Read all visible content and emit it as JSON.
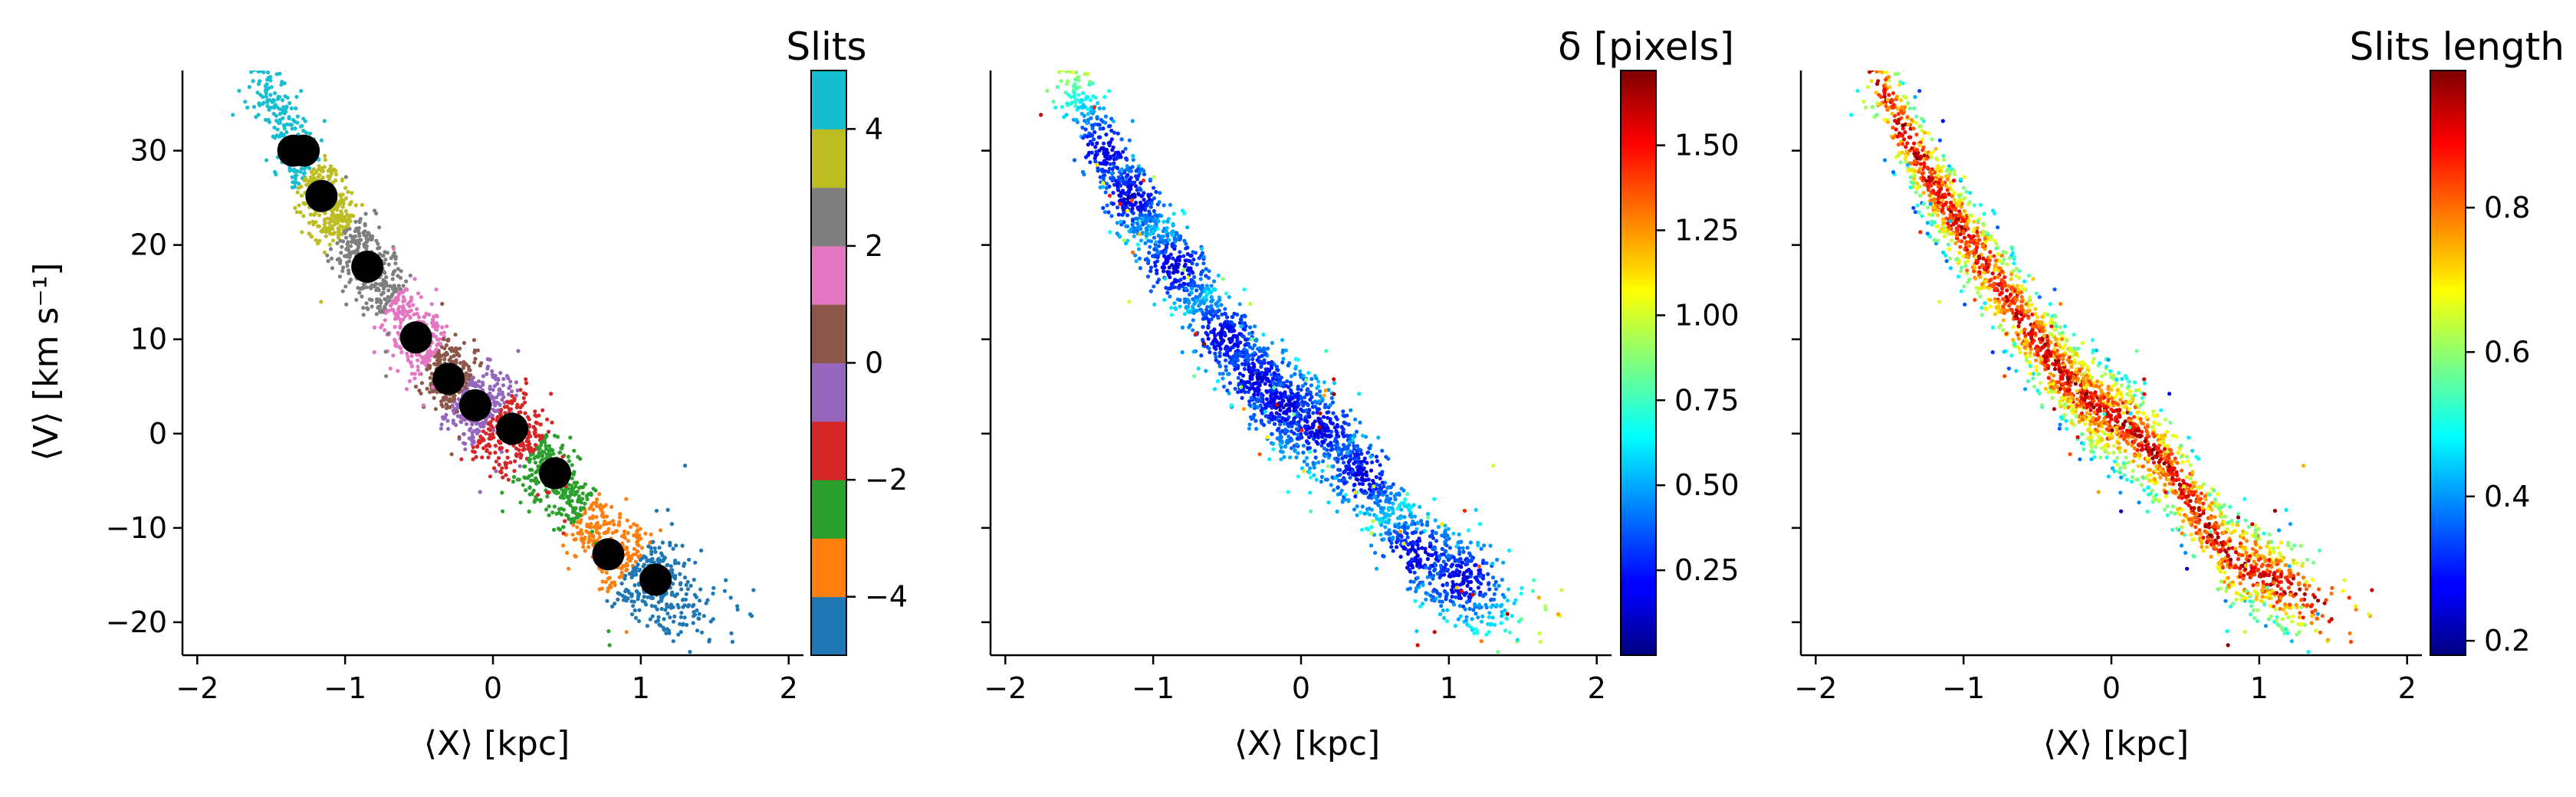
{
  "chart_data": [
    {
      "type": "scatter",
      "xlabel": "⟨X⟩ [kpc]",
      "ylabel": "⟨V⟩ [km s⁻¹]",
      "xlim": [
        -2.1,
        2.1
      ],
      "ylim": [
        -23.5,
        38.5
      ],
      "xticks": [
        -2,
        -1,
        0,
        1,
        2
      ],
      "yticks": [
        -20,
        -10,
        0,
        10,
        20,
        30
      ],
      "xtick_labels": [
        "−2",
        "−1",
        "0",
        "1",
        "2"
      ],
      "ytick_labels": [
        "−20",
        "−10",
        "0",
        "10",
        "20",
        "30"
      ],
      "color_by": "slit",
      "colorbar": {
        "title": "Slits",
        "type": "discrete",
        "range": [
          -5,
          5
        ],
        "ticks": [
          -4,
          -2,
          0,
          2,
          4
        ],
        "tick_labels": [
          "−4",
          "−2",
          "0",
          "2",
          "4"
        ],
        "colors": [
          "#1f77b4",
          "#ff7f0e",
          "#2ca02c",
          "#d62728",
          "#9467bd",
          "#8c564b",
          "#e377c2",
          "#7f7f7f",
          "#bcbd22",
          "#17becf"
        ]
      },
      "slit_centers": [
        {
          "slit": -5,
          "x": 1.1,
          "y": -15.5
        },
        {
          "slit": -4,
          "x": 0.78,
          "y": -12.8
        },
        {
          "slit": -3,
          "x": 0.42,
          "y": -4.2
        },
        {
          "slit": -2,
          "x": 0.13,
          "y": 0.5
        },
        {
          "slit": -1,
          "x": -0.12,
          "y": 3.0
        },
        {
          "slit": 0,
          "x": -0.3,
          "y": 5.8
        },
        {
          "slit": 1,
          "x": -0.52,
          "y": 10.2
        },
        {
          "slit": 2,
          "x": -0.85,
          "y": 17.7
        },
        {
          "slit": 3,
          "x": -1.16,
          "y": 25.2
        },
        {
          "slit": 4,
          "x": -1.33,
          "y": 30.0
        }
      ],
      "markers": [
        {
          "x": -1.35,
          "y": 30.0
        },
        {
          "x": -1.28,
          "y": 30.0
        },
        {
          "x": -1.16,
          "y": 25.2
        },
        {
          "x": -0.85,
          "y": 17.7
        },
        {
          "x": -0.52,
          "y": 10.2
        },
        {
          "x": -0.3,
          "y": 5.8
        },
        {
          "x": -0.12,
          "y": 3.0
        },
        {
          "x": 0.13,
          "y": 0.5
        },
        {
          "x": 0.42,
          "y": -4.2
        },
        {
          "x": 0.78,
          "y": -12.8
        },
        {
          "x": 1.1,
          "y": -15.5
        }
      ]
    },
    {
      "type": "scatter",
      "xlabel": "⟨X⟩ [kpc]",
      "ylabel": "",
      "xlim": [
        -2.1,
        2.1
      ],
      "ylim": [
        -23.5,
        38.5
      ],
      "xticks": [
        -2,
        -1,
        0,
        1,
        2
      ],
      "yticks": [
        -20,
        -10,
        0,
        10,
        20,
        30
      ],
      "xtick_labels": [
        "−2",
        "−1",
        "0",
        "1",
        "2"
      ],
      "color_by": "delta",
      "colorbar": {
        "title": "δ [pixels]",
        "type": "continuous",
        "colormap": "jet",
        "range": [
          0.0,
          1.72
        ],
        "ticks": [
          0.25,
          0.5,
          0.75,
          1.0,
          1.25,
          1.5
        ],
        "tick_labels": [
          "0.25",
          "0.50",
          "0.75",
          "1.00",
          "1.25",
          "1.50"
        ]
      }
    },
    {
      "type": "scatter",
      "xlabel": "⟨X⟩ [kpc]",
      "ylabel": "",
      "xlim": [
        -2.1,
        2.1
      ],
      "ylim": [
        -23.5,
        38.5
      ],
      "xticks": [
        -2,
        -1,
        0,
        1,
        2
      ],
      "yticks": [
        -20,
        -10,
        0,
        10,
        20,
        30
      ],
      "xtick_labels": [
        "−2",
        "−1",
        "0",
        "1",
        "2"
      ],
      "color_by": "slit_length",
      "colorbar": {
        "title": "Slits length",
        "type": "continuous",
        "colormap": "jet",
        "range": [
          0.18,
          0.99
        ],
        "ticks": [
          0.2,
          0.4,
          0.6,
          0.8
        ],
        "tick_labels": [
          "0.2",
          "0.4",
          "0.6",
          "0.8"
        ]
      }
    }
  ]
}
